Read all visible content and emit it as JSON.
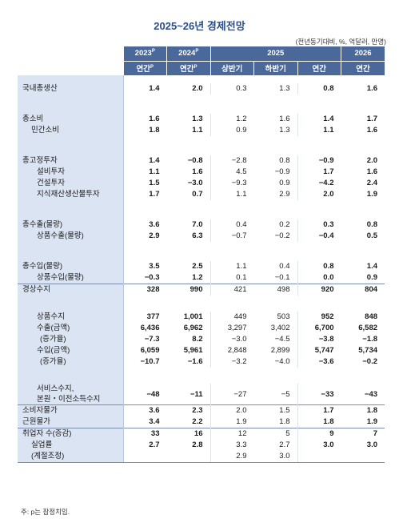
{
  "title": "2025~26년 경제전망",
  "unit": "(전년동기대비, %, 억달러, 만명)",
  "header": {
    "years": [
      {
        "label": "2023",
        "sup": "P"
      },
      {
        "label": "2024",
        "sup": "P"
      },
      {
        "label": "2025",
        "sup": ""
      },
      {
        "label": "2026",
        "sup": ""
      }
    ],
    "periods": [
      {
        "label": "연간",
        "sup": "P"
      },
      {
        "label": "연간",
        "sup": "P"
      },
      {
        "label": "상반기",
        "sup": ""
      },
      {
        "label": "하반기",
        "sup": ""
      },
      {
        "label": "연간",
        "sup": ""
      },
      {
        "label": "연간",
        "sup": ""
      }
    ]
  },
  "rows": [
    {
      "label": "국내총생산",
      "values": [
        "1.4",
        "2.0",
        "0.3",
        "1.3",
        "0.8",
        "1.6"
      ]
    },
    {
      "label": "총소비",
      "values": [
        "1.6",
        "1.3",
        "1.2",
        "1.6",
        "1.4",
        "1.7"
      ]
    },
    {
      "label": "민간소비",
      "values": [
        "1.8",
        "1.1",
        "0.9",
        "1.3",
        "1.1",
        "1.6"
      ]
    },
    {
      "label": "총고정투자",
      "values": [
        "1.4",
        "−0.8",
        "−2.8",
        "0.8",
        "−0.9",
        "2.0"
      ]
    },
    {
      "label": "설비투자",
      "values": [
        "1.1",
        "1.6",
        "4.5",
        "−0.9",
        "1.7",
        "1.6"
      ]
    },
    {
      "label": "건설투자",
      "values": [
        "1.5",
        "−3.0",
        "−9.3",
        "0.9",
        "−4.2",
        "2.4"
      ]
    },
    {
      "label": "지식재산생산물투자",
      "values": [
        "1.7",
        "0.7",
        "1.1",
        "2.9",
        "2.0",
        "1.9"
      ]
    },
    {
      "label": "총수출(물량)",
      "values": [
        "3.6",
        "7.0",
        "0.4",
        "0.2",
        "0.3",
        "0.8"
      ]
    },
    {
      "label": "상품수출(물량)",
      "values": [
        "2.9",
        "6.3",
        "−0.7",
        "−0.2",
        "−0.4",
        "0.5"
      ]
    },
    {
      "label": "총수입(물량)",
      "values": [
        "3.5",
        "2.5",
        "1.1",
        "0.4",
        "0.8",
        "1.4"
      ]
    },
    {
      "label": "상품수입(물량)",
      "values": [
        "−0.3",
        "1.2",
        "0.1",
        "−0.1",
        "0.0",
        "0.9"
      ]
    },
    {
      "label": "경상수지",
      "values": [
        "328",
        "990",
        "421",
        "498",
        "920",
        "804"
      ]
    },
    {
      "label": "상품수지",
      "values": [
        "377",
        "1,001",
        "449",
        "503",
        "952",
        "848"
      ]
    },
    {
      "label": "수출(금액)",
      "values": [
        "6,436",
        "6,962",
        "3,297",
        "3,402",
        "6,700",
        "6,582"
      ]
    },
    {
      "label": "(증가율)",
      "values": [
        "−7.3",
        "8.2",
        "−3.0",
        "−4.5",
        "−3.8",
        "−1.8"
      ]
    },
    {
      "label": "수입(금액)",
      "values": [
        "6,059",
        "5,961",
        "2,848",
        "2,899",
        "5,747",
        "5,734"
      ]
    },
    {
      "label": "(증가율)",
      "values": [
        "−10.7",
        "−1.6",
        "−3.2",
        "−4.0",
        "−3.6",
        "−0.2"
      ]
    },
    {
      "label_line1": "서비스수지,",
      "label_line2": "본원・이전소득수지",
      "values": [
        "−48",
        "−11",
        "−27",
        "−5",
        "−33",
        "−43"
      ]
    },
    {
      "label": "소비자물가",
      "values": [
        "3.6",
        "2.3",
        "2.0",
        "1.5",
        "1.7",
        "1.8"
      ]
    },
    {
      "label": "근원물가",
      "values": [
        "3.4",
        "2.2",
        "1.9",
        "1.8",
        "1.8",
        "1.9"
      ]
    },
    {
      "label": "취업자 수(증감)",
      "values": [
        "33",
        "16",
        "12",
        "5",
        "9",
        "7"
      ]
    },
    {
      "label": "실업률",
      "values": [
        "2.7",
        "2.8",
        "3.3",
        "2.7",
        "3.0",
        "3.0"
      ]
    },
    {
      "label": "(계절조정)",
      "values": [
        "",
        "",
        "2.9",
        "3.0",
        "",
        ""
      ]
    }
  ],
  "note": "주: p는 잠정치임."
}
